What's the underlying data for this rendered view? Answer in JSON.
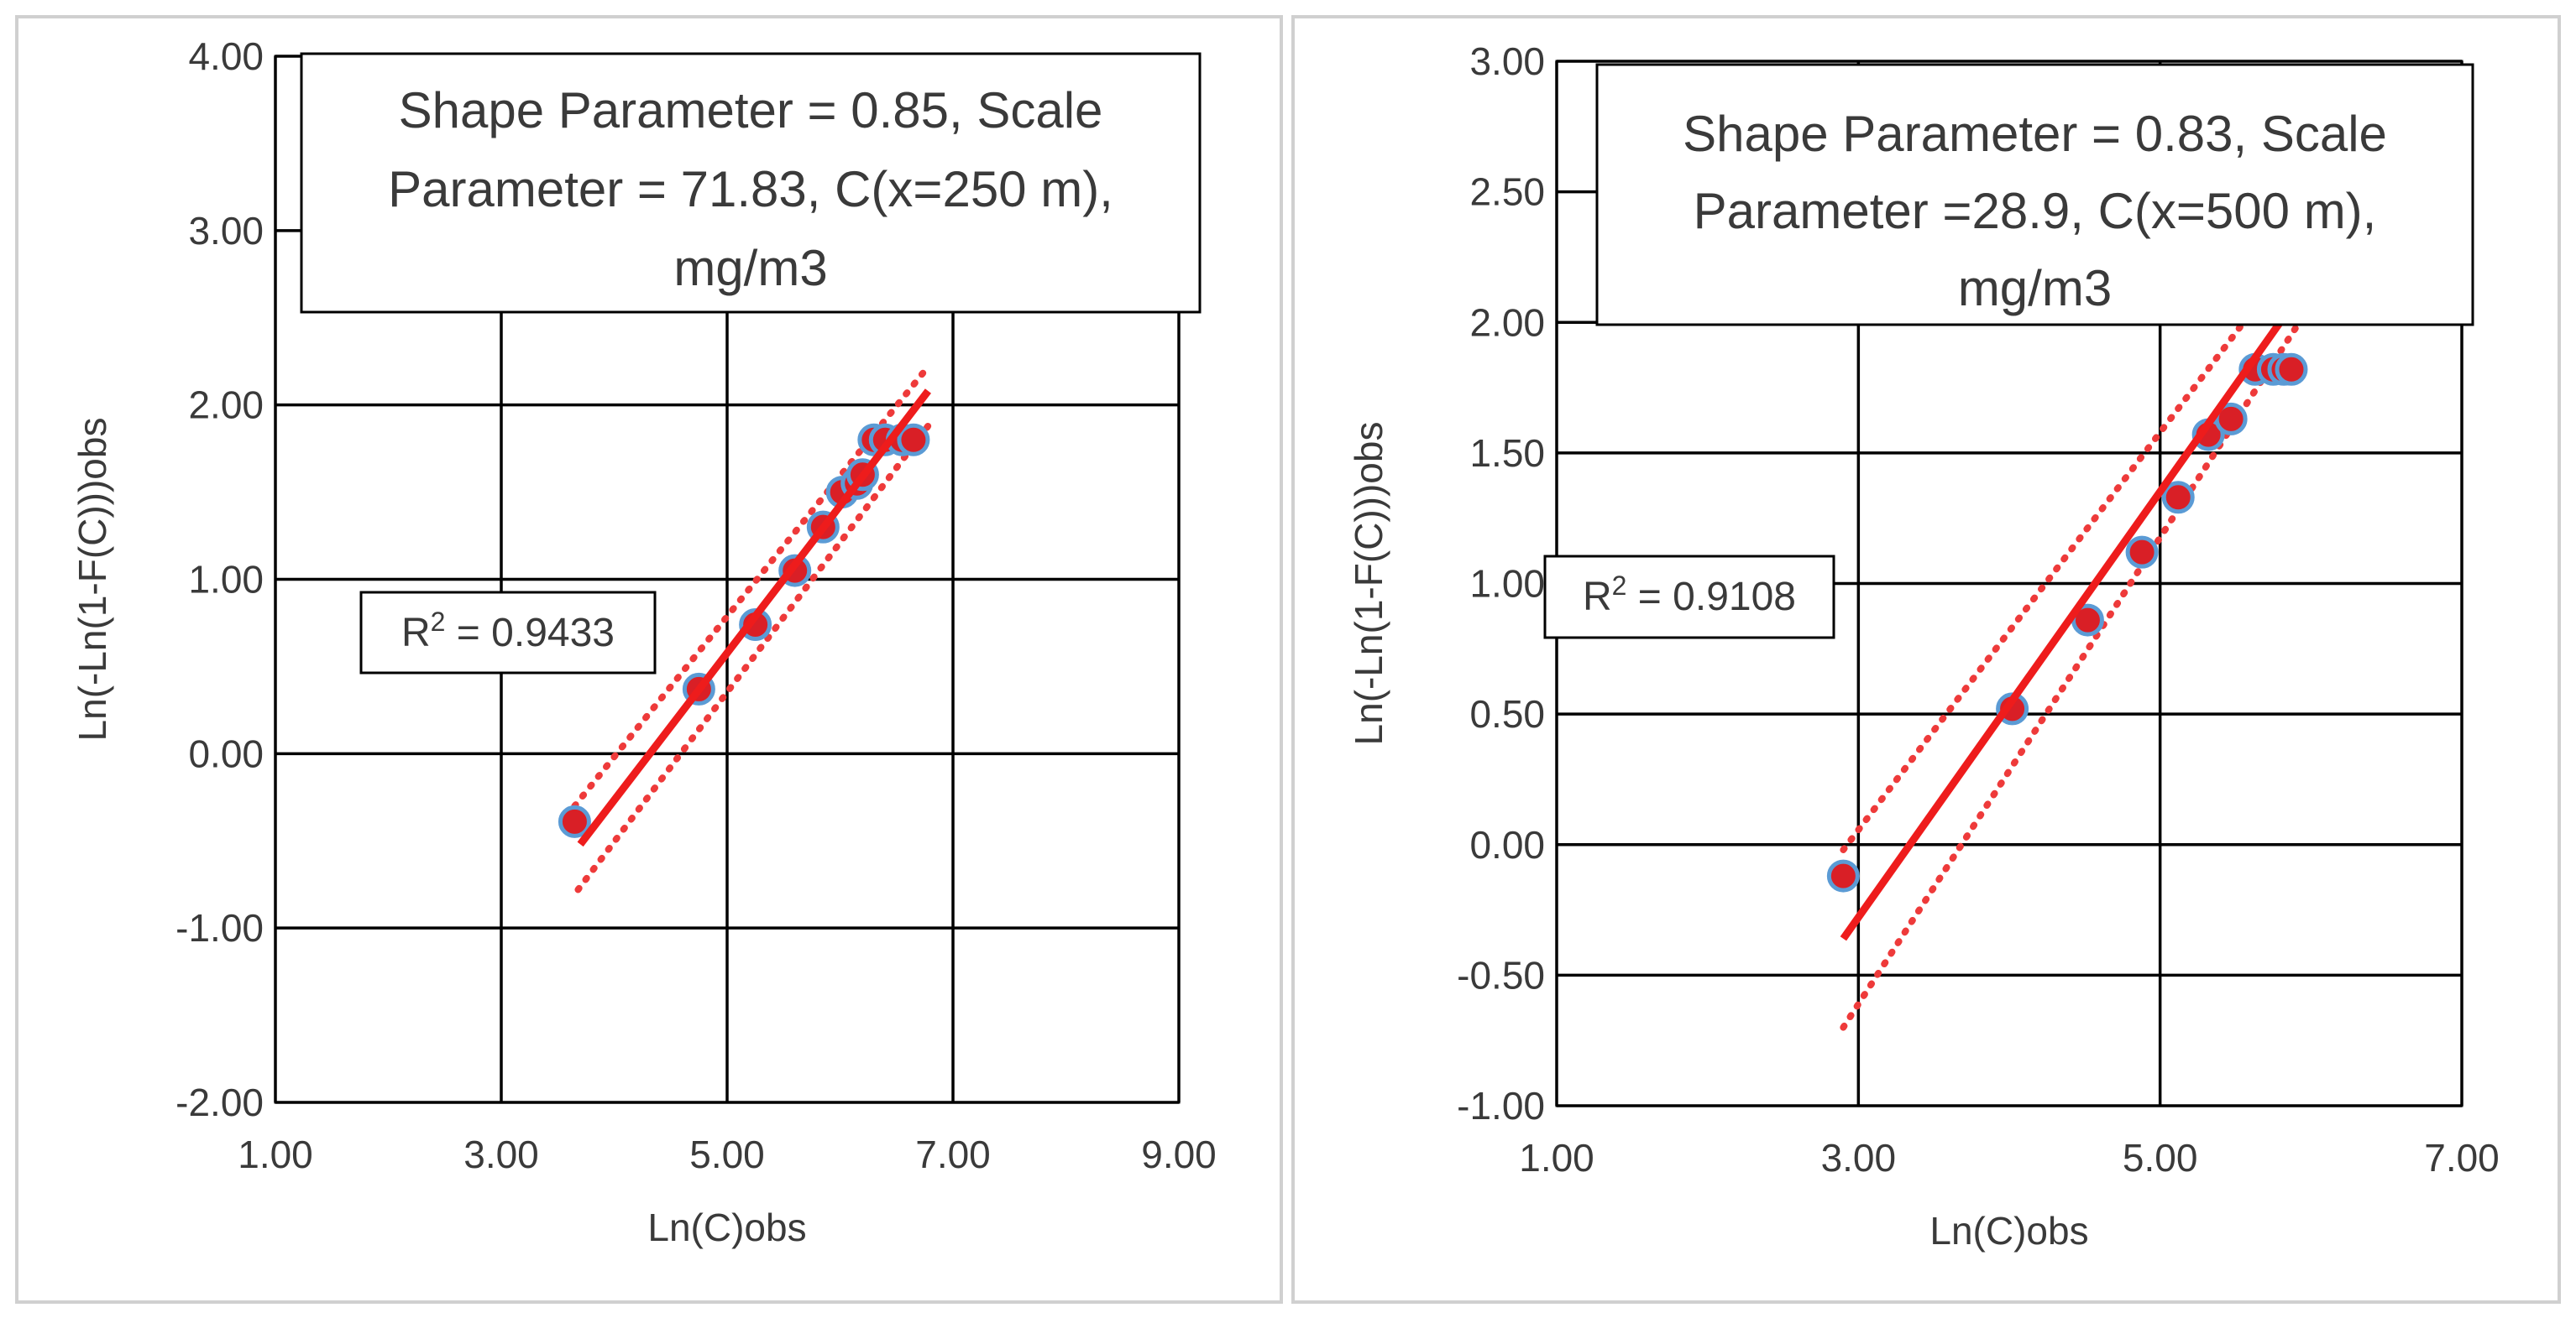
{
  "chart_data": [
    {
      "type": "scatter",
      "xlabel": "Ln(C)obs",
      "ylabel": "Ln(-Ln(1-F(C)))obs",
      "xlim": [
        1.0,
        9.0
      ],
      "ylim": [
        -2.0,
        4.0
      ],
      "xticks": [
        1.0,
        3.0,
        5.0,
        7.0,
        9.0
      ],
      "yticks": [
        -2.0,
        -1.0,
        0.0,
        1.0,
        2.0,
        3.0,
        4.0
      ],
      "xtick_labels": [
        "1.00",
        "3.00",
        "5.00",
        "7.00",
        "9.00"
      ],
      "ytick_labels": [
        "-2.00",
        "-1.00",
        "0.00",
        "1.00",
        "2.00",
        "3.00",
        "4.00"
      ],
      "grid": true,
      "annotation": {
        "lines": [
          "Shape Parameter = 0.85, Scale",
          "Parameter = 71.83, C(x=250 m),",
          "mg/m3"
        ]
      },
      "r2_label": {
        "prefix": "R",
        "sup": "2",
        "suffix": " = 0.9433"
      },
      "points": {
        "x": [
          3.65,
          4.75,
          5.25,
          5.6,
          5.85,
          6.02,
          6.15,
          6.2,
          6.3,
          6.4,
          6.55,
          6.65
        ],
        "y": [
          -0.39,
          0.37,
          0.74,
          1.05,
          1.3,
          1.5,
          1.55,
          1.6,
          1.8,
          1.8,
          1.8,
          1.8
        ]
      },
      "trendline": {
        "x": [
          3.7,
          6.78
        ],
        "y": [
          -0.52,
          2.08
        ]
      },
      "upper_bound": {
        "x": [
          3.65,
          6.78
        ],
        "y": [
          -0.3,
          2.22
        ]
      },
      "lower_bound": {
        "x": [
          3.68,
          6.78
        ],
        "y": [
          -0.78,
          1.88
        ]
      },
      "colors": {
        "marker_fill": "#d91f26",
        "marker_edge": "#5b9bd5",
        "trend": "#ee1c1c",
        "bounds": "#ee3a3a",
        "grid": "#000000"
      }
    },
    {
      "type": "scatter",
      "xlabel": "Ln(C)obs",
      "ylabel": "Ln(-Ln(1-F(C)))obs",
      "xlim": [
        1.0,
        7.0
      ],
      "ylim": [
        -1.0,
        3.0
      ],
      "xticks": [
        1.0,
        3.0,
        5.0,
        7.0
      ],
      "yticks": [
        -1.0,
        -0.5,
        0.0,
        0.5,
        1.0,
        1.5,
        2.0,
        2.5,
        3.0
      ],
      "xtick_labels": [
        "1.00",
        "3.00",
        "5.00",
        "7.00"
      ],
      "ytick_labels": [
        "-1.00",
        "-0.50",
        "0.00",
        "0.50",
        "1.00",
        "1.50",
        "2.00",
        "2.50",
        "3.00"
      ],
      "grid": true,
      "annotation": {
        "lines": [
          "Shape Parameter = 0.83, Scale",
          "Parameter =28.9, C(x=500 m),",
          "mg/m3"
        ]
      },
      "r2_label": {
        "prefix": "R",
        "sup": "2",
        "suffix": " = 0.9108"
      },
      "points": {
        "x": [
          2.9,
          4.02,
          4.52,
          4.88,
          5.12,
          5.32,
          5.47,
          5.63,
          5.75,
          5.82,
          5.87
        ],
        "y": [
          -0.12,
          0.52,
          0.86,
          1.12,
          1.33,
          1.57,
          1.63,
          1.82,
          1.82,
          1.82,
          1.82
        ]
      },
      "trendline": {
        "x": [
          2.9,
          5.82
        ],
        "y": [
          -0.36,
          2.02
        ]
      },
      "upper_bound": {
        "x": [
          2.9,
          5.58
        ],
        "y": [
          -0.02,
          2.02
        ]
      },
      "lower_bound": {
        "x": [
          2.9,
          5.9
        ],
        "y": [
          -0.7,
          1.98
        ]
      },
      "colors": {
        "marker_fill": "#d91f26",
        "marker_edge": "#5b9bd5",
        "trend": "#ee1c1c",
        "bounds": "#ee3a3a",
        "grid": "#000000"
      }
    }
  ]
}
